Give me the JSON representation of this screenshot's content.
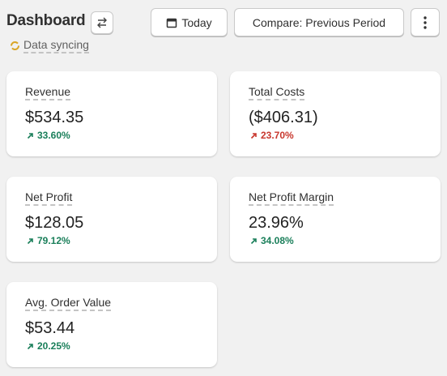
{
  "header": {
    "title": "Dashboard",
    "status": "Data syncing",
    "buttons": {
      "date": "Today",
      "compare": "Compare: Previous Period"
    }
  },
  "cards": [
    {
      "label": "Revenue",
      "value": "$534.35",
      "change": "33.60%",
      "color": "#1a7f5a"
    },
    {
      "label": "Total Costs",
      "value": "($406.31)",
      "change": "23.70%",
      "color": "#c8372d"
    },
    {
      "label": "Net Profit",
      "value": "$128.05",
      "change": "79.12%",
      "color": "#1a7f5a"
    },
    {
      "label": "Net Profit Margin",
      "value": "23.96%",
      "change": "34.08%",
      "color": "#1a7f5a"
    },
    {
      "label": "Avg. Order Value",
      "value": "$53.44",
      "change": "20.25%",
      "color": "#1a7f5a"
    }
  ]
}
